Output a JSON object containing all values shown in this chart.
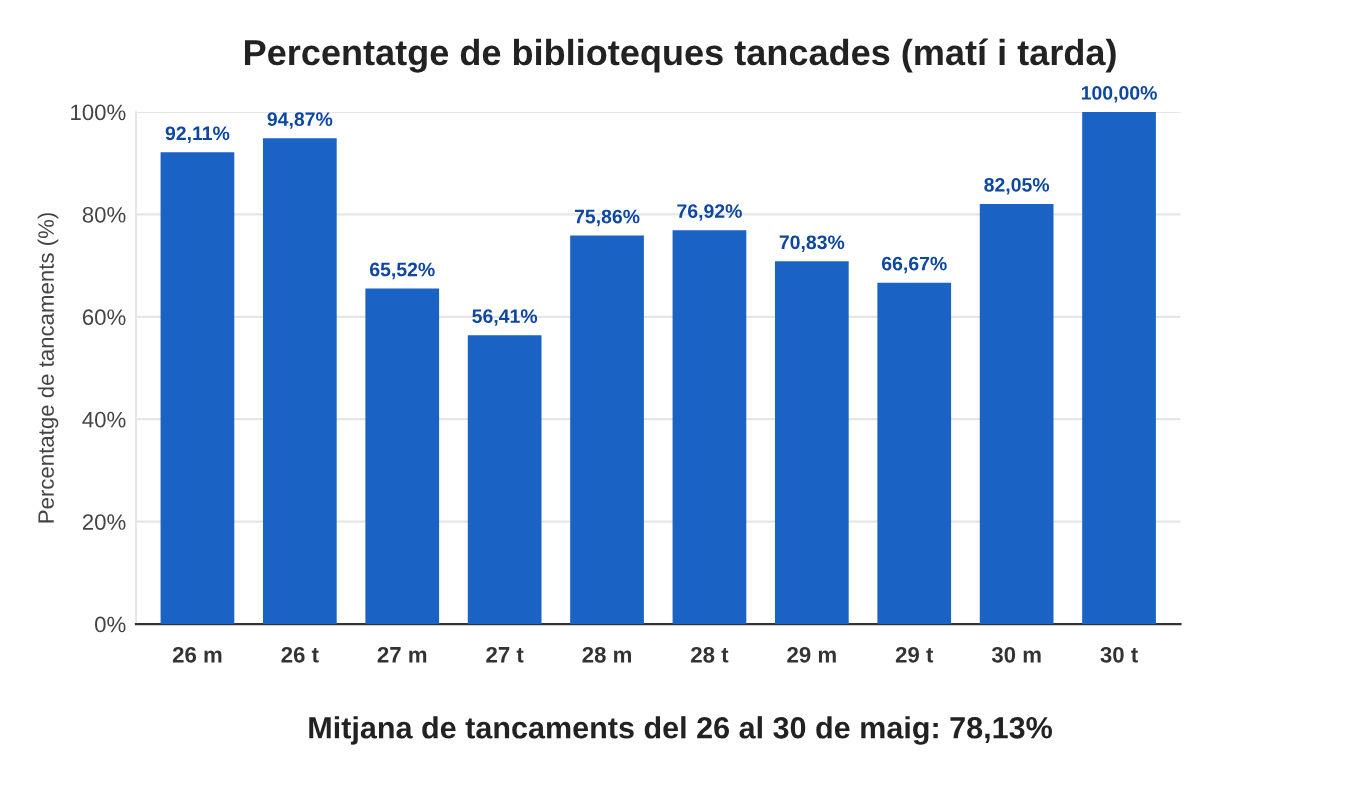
{
  "chart_data": {
    "type": "bar",
    "title": "Percentatge de biblioteques tancades (matí i tarda)",
    "ylabel": "Percentatge de tancaments (%)",
    "categories": [
      "26 m",
      "26 t",
      "27 m",
      "27 t",
      "28 m",
      "28 t",
      "29 m",
      "29 t",
      "30 m",
      "30 t"
    ],
    "values": [
      92.11,
      94.87,
      65.52,
      56.41,
      75.86,
      76.92,
      70.83,
      66.67,
      82.05,
      100.0
    ],
    "value_labels": [
      "92,11%",
      "94,87%",
      "65,52%",
      "56,41%",
      "75,86%",
      "76,92%",
      "70,83%",
      "66,67%",
      "82,05%",
      "100,00%"
    ],
    "color": "#1a62c4",
    "ylim": [
      0,
      100
    ],
    "yticks": [
      {
        "value": 0,
        "label": "0%"
      },
      {
        "value": 20,
        "label": "20%"
      },
      {
        "value": 40,
        "label": "40%"
      },
      {
        "value": 60,
        "label": "60%"
      },
      {
        "value": 80,
        "label": "80%"
      },
      {
        "value": 100,
        "label": "100%"
      }
    ],
    "grid": "y",
    "annotations": [
      "Mitjana de tancaments del 26 al 30 de maig: 78,13%"
    ]
  }
}
